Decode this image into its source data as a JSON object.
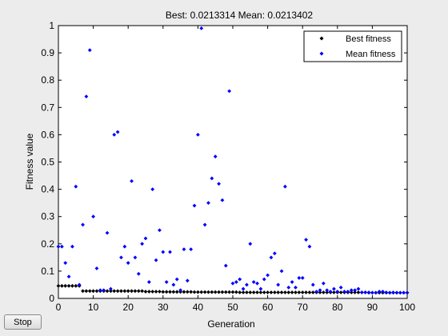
{
  "title": {
    "best_label": "Best:",
    "best_value": "0.0213314",
    "mean_label": "Mean:",
    "mean_value": "0.0213402"
  },
  "controls": {
    "stop_label": "Stop"
  },
  "chart_data": {
    "type": "scatter",
    "xlabel": "Generation",
    "ylabel": "Fitness value",
    "xlim": [
      0,
      100
    ],
    "ylim": [
      0,
      1
    ],
    "xticks": [
      0,
      10,
      20,
      30,
      40,
      50,
      60,
      70,
      80,
      90,
      100
    ],
    "yticks": [
      0,
      0.1,
      0.2,
      0.3,
      0.4,
      0.5,
      0.6,
      0.7,
      0.8,
      0.9,
      1
    ],
    "grid": false,
    "legend": "top-right",
    "series": [
      {
        "name": "Best fitness",
        "color": "#000000",
        "marker": "diamond",
        "x": [
          0,
          1,
          2,
          3,
          4,
          5,
          6,
          7,
          8,
          9,
          10,
          11,
          12,
          13,
          14,
          15,
          16,
          17,
          18,
          19,
          20,
          21,
          22,
          23,
          24,
          25,
          26,
          27,
          28,
          29,
          30,
          31,
          32,
          33,
          34,
          35,
          36,
          37,
          38,
          39,
          40,
          41,
          42,
          43,
          44,
          45,
          46,
          47,
          48,
          49,
          50,
          51,
          52,
          53,
          54,
          55,
          56,
          57,
          58,
          59,
          60,
          61,
          62,
          63,
          64,
          65,
          66,
          67,
          68,
          69,
          70,
          71,
          72,
          73,
          74,
          75,
          76,
          77,
          78,
          79,
          80,
          81,
          82,
          83,
          84,
          85,
          86,
          87,
          88,
          89,
          90,
          91,
          92,
          93,
          94,
          95,
          96,
          97,
          98,
          99,
          100
        ],
        "y": [
          0.046,
          0.046,
          0.046,
          0.046,
          0.046,
          0.046,
          0.046,
          0.027,
          0.027,
          0.027,
          0.027,
          0.027,
          0.027,
          0.027,
          0.027,
          0.027,
          0.027,
          0.027,
          0.027,
          0.027,
          0.027,
          0.027,
          0.027,
          0.027,
          0.027,
          0.025,
          0.025,
          0.025,
          0.025,
          0.025,
          0.024,
          0.024,
          0.024,
          0.024,
          0.024,
          0.024,
          0.024,
          0.024,
          0.024,
          0.023,
          0.023,
          0.023,
          0.023,
          0.023,
          0.023,
          0.023,
          0.023,
          0.023,
          0.023,
          0.023,
          0.023,
          0.023,
          0.022,
          0.022,
          0.022,
          0.022,
          0.022,
          0.022,
          0.022,
          0.022,
          0.022,
          0.022,
          0.022,
          0.022,
          0.022,
          0.022,
          0.022,
          0.022,
          0.022,
          0.022,
          0.022,
          0.022,
          0.022,
          0.022,
          0.022,
          0.022,
          0.022,
          0.022,
          0.022,
          0.022,
          0.022,
          0.022,
          0.022,
          0.022,
          0.022,
          0.022,
          0.022,
          0.022,
          0.022,
          0.021,
          0.021,
          0.021,
          0.021,
          0.021,
          0.021,
          0.021,
          0.021,
          0.021,
          0.021,
          0.021,
          0.021
        ]
      },
      {
        "name": "Mean fitness",
        "color": "#0000ff",
        "marker": "diamond",
        "x": [
          0,
          1,
          2,
          3,
          4,
          5,
          6,
          7,
          8,
          9,
          10,
          11,
          12,
          13,
          14,
          15,
          16,
          17,
          18,
          19,
          20,
          21,
          22,
          23,
          24,
          25,
          26,
          27,
          28,
          29,
          30,
          31,
          32,
          33,
          34,
          35,
          36,
          37,
          38,
          39,
          40,
          41,
          42,
          43,
          44,
          45,
          46,
          47,
          48,
          49,
          50,
          51,
          52,
          53,
          54,
          55,
          56,
          57,
          58,
          59,
          60,
          61,
          62,
          63,
          64,
          65,
          66,
          67,
          68,
          69,
          70,
          71,
          72,
          73,
          74,
          75,
          76,
          77,
          78,
          79,
          80,
          81,
          82,
          83,
          84,
          85,
          86,
          87,
          88,
          89,
          90,
          91,
          92,
          93,
          94,
          95,
          96,
          97,
          98,
          99,
          100
        ],
        "y": [
          0.19,
          0.19,
          0.13,
          0.08,
          0.19,
          0.41,
          0.05,
          0.27,
          0.74,
          0.91,
          0.3,
          0.11,
          0.03,
          0.03,
          0.24,
          0.035,
          0.6,
          0.61,
          0.15,
          0.19,
          0.13,
          0.43,
          0.15,
          0.09,
          0.2,
          0.22,
          0.06,
          0.4,
          0.14,
          0.25,
          0.17,
          0.06,
          0.17,
          0.05,
          0.07,
          0.03,
          0.18,
          0.065,
          0.18,
          0.34,
          0.6,
          0.99,
          0.27,
          0.35,
          0.44,
          0.52,
          0.42,
          0.36,
          0.12,
          0.76,
          0.055,
          0.06,
          0.07,
          0.035,
          0.05,
          0.2,
          0.06,
          0.055,
          0.035,
          0.07,
          0.085,
          0.15,
          0.165,
          0.05,
          0.1,
          0.41,
          0.04,
          0.06,
          0.04,
          0.075,
          0.075,
          0.215,
          0.19,
          0.05,
          0.025,
          0.03,
          0.055,
          0.03,
          0.025,
          0.035,
          0.025,
          0.04,
          0.025,
          0.025,
          0.03,
          0.03,
          0.035,
          0.022,
          0.022,
          0.022,
          0.021,
          0.021,
          0.025,
          0.025,
          0.022,
          0.021,
          0.022,
          0.021,
          0.021,
          0.021,
          0.021
        ]
      }
    ]
  }
}
